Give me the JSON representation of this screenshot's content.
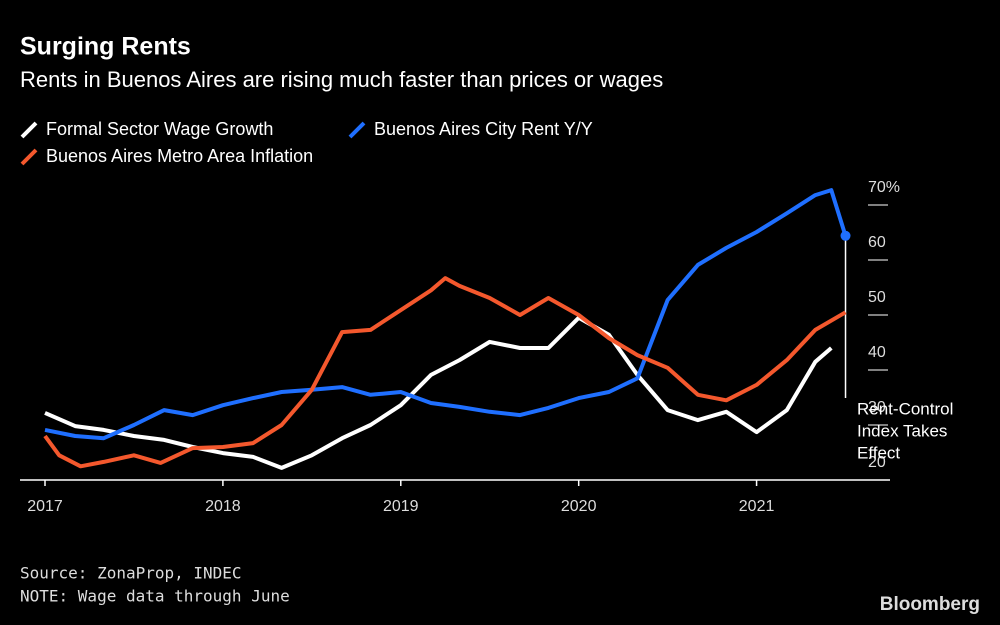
{
  "chart_data": {
    "type": "line",
    "title": "Surging Rents",
    "subtitle": "Rents in Buenos Aires are rising much faster than prices or wages",
    "xlim": [
      2017,
      2021.75
    ],
    "xticks": [
      2017,
      2018,
      2019,
      2020,
      2021
    ],
    "ylim": [
      20,
      75
    ],
    "yticks": [
      {
        "value": 70,
        "label": "70%"
      },
      60,
      50,
      40,
      30,
      20
    ],
    "series": [
      {
        "name": "Formal Sector Wage Growth",
        "color": "#ffffff",
        "x": [
          2017,
          2017.17,
          2017.33,
          2017.5,
          2017.67,
          2017.83,
          2018,
          2018.17,
          2018.33,
          2018.5,
          2018.67,
          2018.83,
          2019,
          2019.17,
          2019.33,
          2019.5,
          2019.67,
          2019.83,
          2020,
          2020.17,
          2020.33,
          2020.5,
          2020.67,
          2020.83,
          2021,
          2021.17,
          2021.33,
          2021.42
        ],
        "values": [
          32.2,
          29.8,
          29.1,
          28.0,
          27.3,
          26.0,
          24.9,
          24.2,
          22.2,
          24.5,
          27.6,
          30.0,
          33.6,
          39.1,
          41.8,
          45.1,
          44.0,
          44.0,
          49.5,
          46.4,
          39.1,
          32.7,
          30.9,
          32.4,
          28.7,
          32.7,
          41.5,
          44.0
        ]
      },
      {
        "name": "Buenos Aires City Rent Y/Y",
        "color": "#1f6fff",
        "x": [
          2017,
          2017.17,
          2017.33,
          2017.5,
          2017.67,
          2017.83,
          2018,
          2018.17,
          2018.33,
          2018.5,
          2018.67,
          2018.83,
          2019,
          2019.17,
          2019.33,
          2019.5,
          2019.67,
          2019.83,
          2020,
          2020.17,
          2020.33,
          2020.5,
          2020.67,
          2020.83,
          2021,
          2021.17,
          2021.33,
          2021.42,
          2021.5
        ],
        "values": [
          29.1,
          28.0,
          27.6,
          30.0,
          32.7,
          31.8,
          33.6,
          34.9,
          36.0,
          36.4,
          36.9,
          35.5,
          36.0,
          34.0,
          33.3,
          32.4,
          31.8,
          33.1,
          34.9,
          36.0,
          38.5,
          52.7,
          59.1,
          62.2,
          65.1,
          68.5,
          71.8,
          72.7,
          64.4
        ]
      },
      {
        "name": "Buenos Aires Metro Area Inflation",
        "color": "#f4582d",
        "x": [
          2017,
          2017.08,
          2017.2,
          2017.33,
          2017.5,
          2017.65,
          2017.83,
          2018,
          2018.17,
          2018.33,
          2018.5,
          2018.67,
          2018.83,
          2019,
          2019.17,
          2019.25,
          2019.33,
          2019.5,
          2019.67,
          2019.83,
          2020,
          2020.17,
          2020.33,
          2020.5,
          2020.67,
          2020.83,
          2021,
          2021.17,
          2021.33,
          2021.5
        ],
        "values": [
          28.0,
          24.5,
          22.5,
          23.3,
          24.5,
          23.1,
          25.8,
          26.0,
          26.7,
          30.0,
          36.4,
          46.9,
          47.3,
          50.9,
          54.5,
          56.7,
          55.3,
          53.1,
          50.0,
          53.1,
          50.0,
          45.8,
          42.7,
          40.4,
          35.5,
          34.5,
          37.3,
          41.8,
          47.3,
          50.5
        ]
      }
    ],
    "annotation": {
      "lines": [
        "Rent-Control",
        "Index Takes",
        "Effect"
      ],
      "x": 2021.5
    },
    "source": "Source: ZonaProp, INDEC",
    "note": "NOTE: Wage data through June",
    "credit": "Bloomberg"
  }
}
